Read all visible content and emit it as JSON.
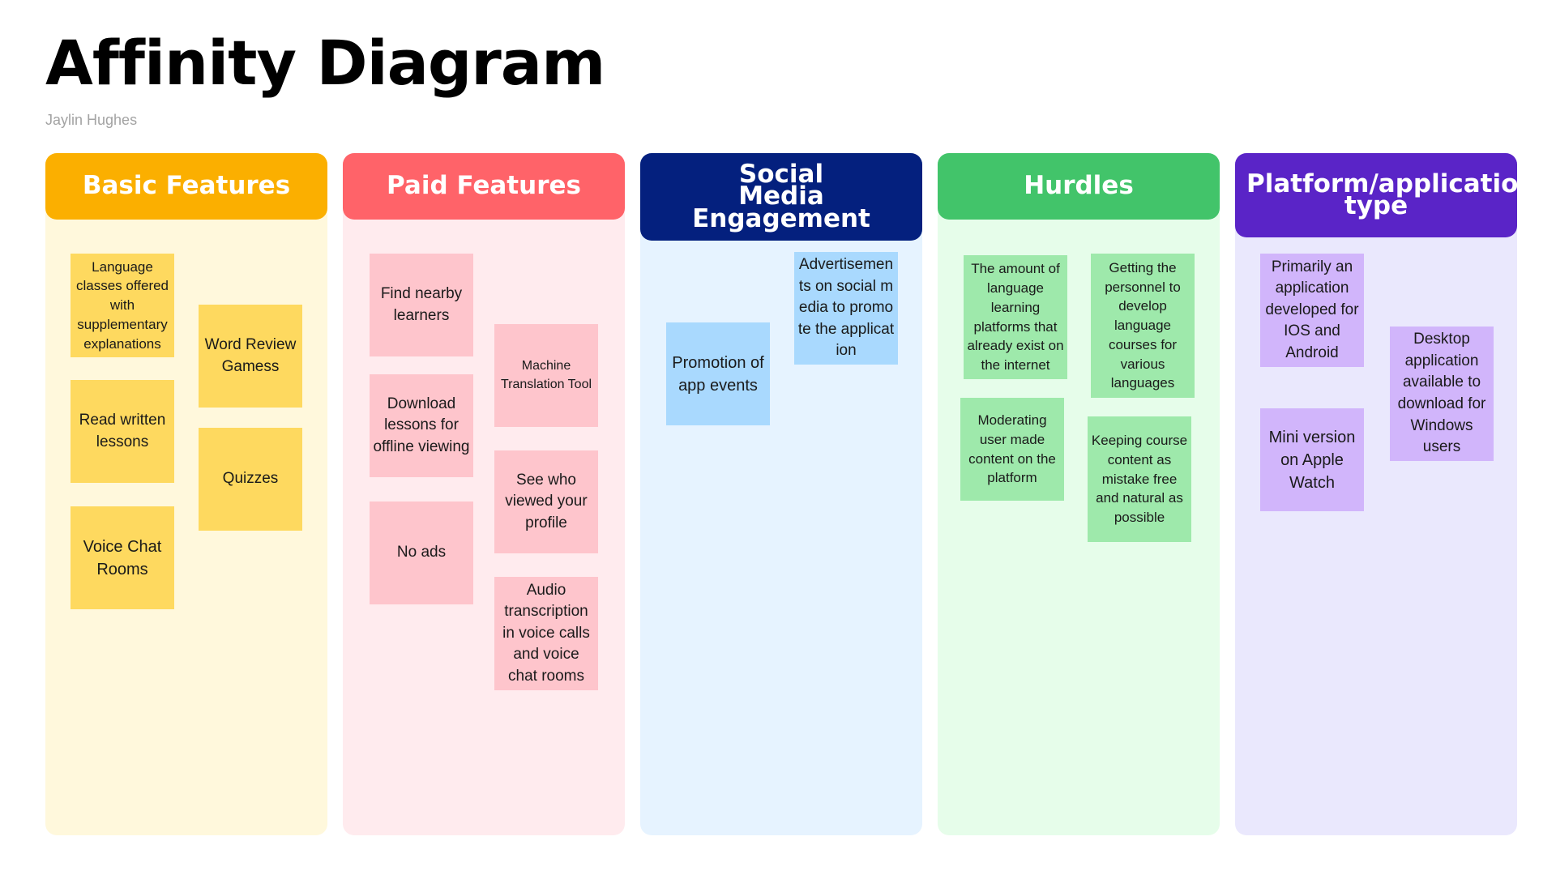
{
  "title": "Affinity Diagram",
  "author": "Jaylin Hughes",
  "colors": {
    "basic_header": "#fbaf00",
    "basic_bg": "#fff8dc",
    "basic_note": "#fed95f",
    "paid_header": "#ff6369",
    "paid_bg": "#ffebee",
    "paid_note": "#fec5cc",
    "social_header": "#04207e",
    "social_bg": "#e6f3ff",
    "social_note": "#a9d9fe",
    "hurdles_header": "#42c46a",
    "hurdles_bg": "#e6fdea",
    "hurdles_note": "#9ee9ab",
    "platform_header": "#5a24c7",
    "platform_bg": "#eae8fd",
    "platform_note": "#d1b5fb"
  },
  "columns": [
    {
      "header": "Basic Features",
      "notes": [
        "Language classes offered with supplementary explanations",
        "Word Review Gamess",
        "Read written lessons",
        "Quizzes",
        "Voice Chat Rooms"
      ]
    },
    {
      "header": "Paid Features",
      "notes": [
        "Find nearby learners",
        "Machine Translation Tool",
        "Download lessons for offline viewing",
        "See who viewed your profile",
        "No ads",
        "Audio transcription in voice calls and voice chat rooms"
      ]
    },
    {
      "header": "Social Media Engagement",
      "notes": [
        "Advertisements on social media to promote the application",
        "Promotion of app events"
      ]
    },
    {
      "header": "Hurdles",
      "notes": [
        "The amount of language learning platforms that already exist on the internet",
        "Getting the personnel to develop language courses for various languages",
        "Moderating user made content on the platform",
        "Keeping course content as mistake free and natural as possible"
      ]
    },
    {
      "header": "Platform/application type",
      "notes": [
        "Primarily an application developed for IOS and Android",
        "Desktop application available to download for Windows users",
        "Mini version on Apple Watch"
      ]
    }
  ]
}
